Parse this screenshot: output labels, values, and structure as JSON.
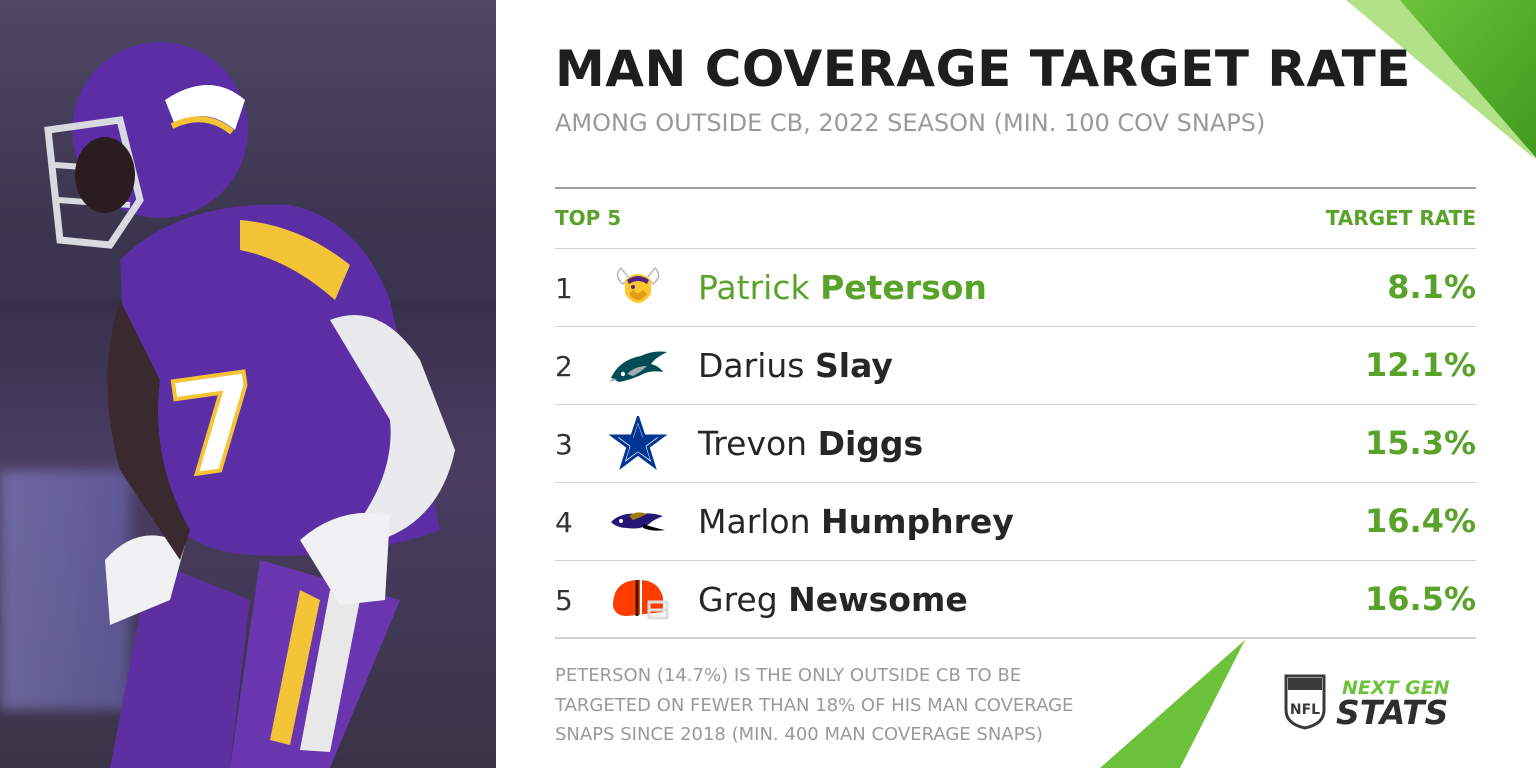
{
  "title": "MAN COVERAGE TARGET RATE",
  "subtitle": "AMONG OUTSIDE CB, 2022 SEASON (MIN. 100 COV SNAPS)",
  "table": {
    "left_header": "TOP 5",
    "right_header": "TARGET RATE",
    "rows": [
      {
        "rank": "1",
        "first": "Patrick",
        "last": "Peterson",
        "rate": "8.1%",
        "team_icon": "vikings-logo-icon"
      },
      {
        "rank": "2",
        "first": "Darius",
        "last": "Slay",
        "rate": "12.1%",
        "team_icon": "eagles-logo-icon"
      },
      {
        "rank": "3",
        "first": "Trevon",
        "last": "Diggs",
        "rate": "15.3%",
        "team_icon": "cowboys-star-icon"
      },
      {
        "rank": "4",
        "first": "Marlon",
        "last": "Humphrey",
        "rate": "16.4%",
        "team_icon": "ravens-logo-icon"
      },
      {
        "rank": "5",
        "first": "Greg",
        "last": "Newsome",
        "rate": "16.5%",
        "team_icon": "browns-helmet-icon"
      }
    ]
  },
  "footnote": "PETERSON (14.7%) IS THE ONLY OUTSIDE CB TO BE TARGETED ON FEWER THAN 18% OF HIS MAN COVERAGE SNAPS SINCE 2018 (MIN. 400 MAN COVERAGE SNAPS)",
  "branding": {
    "line1": "NEXT GEN",
    "line2": "STATS",
    "shield_text": "NFL"
  },
  "colors": {
    "accent_green": "#5aa32a",
    "title": "#1e1e1e",
    "muted": "#9a9a9a",
    "vikings_purple": "#4f2683",
    "vikings_gold": "#ffc62f"
  }
}
